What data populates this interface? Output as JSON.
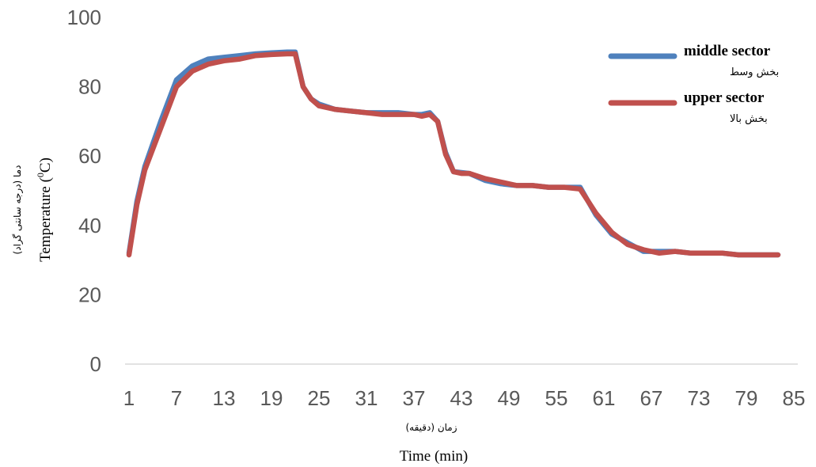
{
  "chart_data": {
    "type": "line",
    "xlabel_en": "Time (min)",
    "xlabel_fa": "زمان (دقیقه)",
    "ylabel_en_prefix": "Temperature (",
    "ylabel_en_sup": "0",
    "ylabel_en_suffix": "C)",
    "ylabel_fa": "دما (درجه سانتی گراد)",
    "xticks": [
      1,
      7,
      13,
      19,
      25,
      31,
      37,
      43,
      49,
      55,
      61,
      67,
      73,
      79,
      85
    ],
    "yticks": [
      0,
      20,
      40,
      60,
      80,
      100
    ],
    "xlim": [
      1,
      85
    ],
    "ylim": [
      0,
      100
    ],
    "gridlines": false,
    "legend_position": "top-right",
    "series": [
      {
        "name": "middle sector",
        "name_fa": "بخش وسط",
        "color": "#4f81bd",
        "x": [
          1,
          2,
          3,
          5,
          7,
          9,
          11,
          13,
          15,
          17,
          19,
          21,
          22,
          23,
          24,
          25,
          27,
          29,
          31,
          33,
          35,
          37,
          38,
          39,
          40,
          41,
          42,
          44,
          46,
          48,
          50,
          52,
          54,
          56,
          58,
          60,
          62,
          64,
          66,
          68,
          70,
          72,
          74,
          76,
          78,
          80,
          83
        ],
        "y": [
          32,
          47,
          57,
          70,
          82,
          86,
          88,
          88.5,
          89,
          89.5,
          89.8,
          90,
          90,
          80,
          76.5,
          75,
          73.5,
          73,
          72.5,
          72.5,
          72.5,
          72,
          72,
          72.5,
          70,
          61,
          55.5,
          55,
          53,
          52,
          51.5,
          51.5,
          51,
          51,
          51,
          43,
          37.5,
          35,
          32.5,
          32.5,
          32.5,
          32,
          32,
          32,
          31.5,
          31.5,
          31.5
        ]
      },
      {
        "name": "upper sector",
        "name_fa": "بخش بالا",
        "color": "#c0504d",
        "x": [
          1,
          2,
          3,
          5,
          7,
          9,
          11,
          13,
          15,
          17,
          19,
          21,
          22,
          23,
          24,
          25,
          27,
          29,
          31,
          33,
          35,
          37,
          38,
          39,
          40,
          41,
          42,
          43,
          44,
          46,
          48,
          50,
          52,
          54,
          56,
          58,
          60,
          62,
          64,
          66,
          68,
          70,
          72,
          74,
          76,
          78,
          80,
          83
        ],
        "y": [
          31.5,
          46,
          56,
          68,
          80,
          84.5,
          86.5,
          87.5,
          88,
          89,
          89.3,
          89.5,
          89.5,
          80,
          76.5,
          74.5,
          73.5,
          73,
          72.5,
          72,
          72,
          72,
          71.5,
          72,
          70,
          60.5,
          55.5,
          55,
          55,
          53.5,
          52.5,
          51.5,
          51.5,
          51,
          51,
          50.5,
          43.5,
          38,
          34.5,
          33,
          32,
          32.5,
          32,
          32,
          32,
          31.5,
          31.5,
          31.5
        ]
      }
    ]
  }
}
